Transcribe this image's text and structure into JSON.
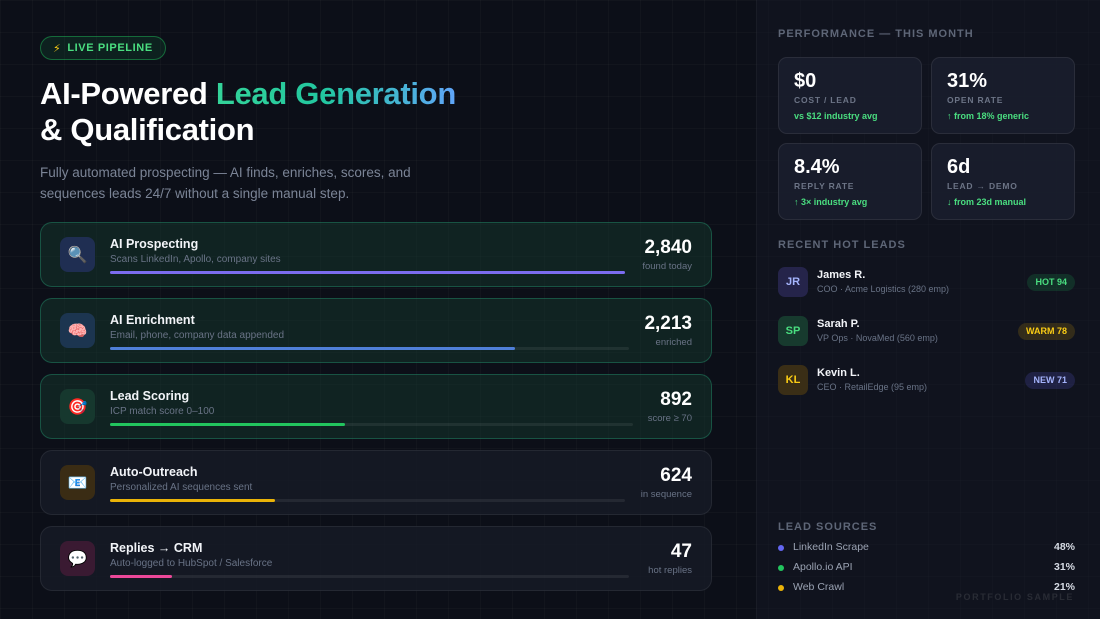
{
  "header": {
    "badge_icon": "lightning-icon",
    "badge_label": "LIVE PIPELINE",
    "title_prefix": "AI-Powered ",
    "title_accent": "Lead Generation",
    "title_line2": "& Qualification",
    "subtitle": "Fully automated prospecting — AI finds, enriches, scores, and sequences leads 24/7 without a single manual step."
  },
  "pipeline": [
    {
      "icon": "🔍",
      "icon_name": "search-icon",
      "title": "AI Prospecting",
      "desc": "Scans LinkedIn, Apollo, company sites",
      "value": "2,840",
      "unit": "found today",
      "progress": 1.0,
      "color": "#7c6cf0",
      "icon_bg": "#1f2e52",
      "active": true
    },
    {
      "icon": "🧠",
      "icon_name": "brain-icon",
      "title": "AI Enrichment",
      "desc": "Email, phone, company data appended",
      "value": "2,213",
      "unit": "enriched",
      "progress": 0.78,
      "color": "#4f7fd8",
      "icon_bg": "#1c3550",
      "active": true
    },
    {
      "icon": "🎯",
      "icon_name": "target-icon",
      "title": "Lead Scoring",
      "desc": "ICP match score 0–100",
      "value": "892",
      "unit": "score ≥ 70",
      "progress": 0.45,
      "color": "#22c55e",
      "icon_bg": "#16382e",
      "active": true
    },
    {
      "icon": "📧",
      "icon_name": "email-icon",
      "title": "Auto-Outreach",
      "desc": "Personalized AI sequences sent",
      "value": "624",
      "unit": "in sequence",
      "progress": 0.32,
      "color": "#eab308",
      "icon_bg": "#3a2c14",
      "active": false
    },
    {
      "icon": "💬",
      "icon_name": "chat-bubble-icon",
      "title": "Replies → CRM",
      "desc": "Auto-logged to HubSpot / Salesforce",
      "value": "47",
      "unit": "hot replies",
      "progress": 0.12,
      "color": "#ec4899",
      "icon_bg": "#3a1a32",
      "active": false
    }
  ],
  "performance": {
    "label": "PERFORMANCE — THIS MONTH",
    "metrics": [
      {
        "value": "$0",
        "label": "COST / LEAD",
        "note": "vs $12 industry avg"
      },
      {
        "value": "31%",
        "label": "OPEN RATE",
        "note": "↑ from 18% generic"
      },
      {
        "value": "8.4%",
        "label": "REPLY RATE",
        "note": "↑ 3× industry avg"
      },
      {
        "value": "6d",
        "label": "LEAD → DEMO",
        "note": "↓ from 23d manual"
      }
    ]
  },
  "hot_leads": {
    "label": "RECENT HOT LEADS",
    "items": [
      {
        "initials": "JR",
        "name": "James R.",
        "detail": "COO · Acme Logistics (280 emp)",
        "tag": "HOT 94",
        "avatar_bg": "#25244a",
        "avatar_fg": "#a5b4fc",
        "tag_bg": "rgba(34,197,94,0.16)",
        "tag_fg": "#4ade80"
      },
      {
        "initials": "SP",
        "name": "Sarah P.",
        "detail": "VP Ops · NovaMed (560 emp)",
        "tag": "WARM 78",
        "avatar_bg": "#173a2e",
        "avatar_fg": "#4ade80",
        "tag_bg": "rgba(234,179,8,0.16)",
        "tag_fg": "#facc15"
      },
      {
        "initials": "KL",
        "name": "Kevin L.",
        "detail": "CEO · RetailEdge (95 emp)",
        "tag": "NEW 71",
        "avatar_bg": "#3a2e16",
        "avatar_fg": "#facc15",
        "tag_bg": "rgba(99,102,241,0.18)",
        "tag_fg": "#a5b4fc"
      }
    ]
  },
  "lead_sources": {
    "label": "LEAD SOURCES",
    "items": [
      {
        "name": "LinkedIn Scrape",
        "pct": "48%",
        "color": "#6366f1"
      },
      {
        "name": "Apollo.io API",
        "pct": "31%",
        "color": "#22c55e"
      },
      {
        "name": "Web Crawl",
        "pct": "21%",
        "color": "#eab308"
      }
    ]
  },
  "watermark": "PORTFOLIO SAMPLE"
}
